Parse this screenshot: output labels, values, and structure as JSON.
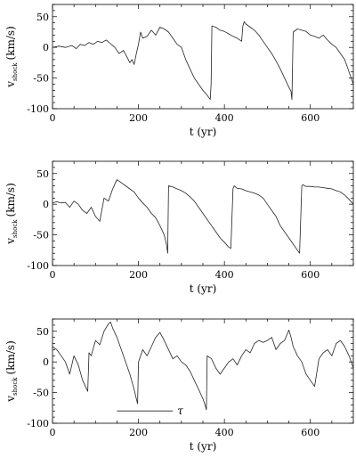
{
  "chart_data": [
    {
      "type": "line",
      "xlabel": "t (yr)",
      "ylabel_main": "v",
      "ylabel_sub": "shock",
      "ylabel_units": "(km/s)",
      "xlim": [
        0,
        700
      ],
      "ylim": [
        -100,
        70
      ],
      "xticks_major": [
        0,
        200,
        400,
        600
      ],
      "yticks_major": [
        -100,
        -50,
        0,
        50
      ],
      "x": [
        0,
        15,
        30,
        45,
        55,
        65,
        75,
        85,
        95,
        105,
        115,
        125,
        135,
        145,
        155,
        165,
        175,
        180,
        185,
        190,
        195,
        200,
        205,
        210,
        220,
        230,
        240,
        250,
        260,
        270,
        280,
        290,
        300,
        310,
        320,
        330,
        340,
        350,
        360,
        367,
        369,
        371,
        380,
        390,
        400,
        410,
        420,
        430,
        440,
        443,
        446,
        450,
        460,
        470,
        480,
        490,
        500,
        510,
        520,
        530,
        540,
        550,
        555,
        557,
        560,
        570,
        580,
        590,
        600,
        610,
        620,
        630,
        640,
        650,
        660,
        670,
        680,
        690,
        700
      ],
      "y": [
        0,
        2,
        0,
        3,
        -2,
        5,
        3,
        8,
        5,
        10,
        8,
        12,
        6,
        0,
        -10,
        -5,
        -18,
        -25,
        -20,
        -28,
        -10,
        5,
        25,
        15,
        18,
        28,
        20,
        33,
        30,
        25,
        15,
        5,
        0,
        -20,
        -35,
        -50,
        -60,
        -70,
        -78,
        -85,
        -60,
        35,
        33,
        28,
        26,
        22,
        18,
        15,
        10,
        35,
        42,
        38,
        33,
        28,
        20,
        10,
        0,
        -10,
        -22,
        -35,
        -50,
        -65,
        -72,
        -85,
        25,
        30,
        28,
        26,
        20,
        18,
        15,
        20,
        12,
        5,
        0,
        -10,
        -20,
        -40,
        -60
      ]
    },
    {
      "type": "line",
      "xlabel": "t (yr)",
      "ylabel_main": "v",
      "ylabel_sub": "shock",
      "ylabel_units": "(km/s)",
      "xlim": [
        0,
        700
      ],
      "ylim": [
        -100,
        70
      ],
      "xticks_major": [
        0,
        200,
        400,
        600
      ],
      "yticks_major": [
        -100,
        -50,
        0,
        50
      ],
      "x": [
        0,
        10,
        20,
        30,
        40,
        50,
        60,
        70,
        80,
        90,
        100,
        110,
        120,
        130,
        140,
        150,
        160,
        170,
        180,
        190,
        200,
        210,
        220,
        230,
        240,
        250,
        260,
        265,
        268,
        270,
        280,
        290,
        300,
        310,
        320,
        330,
        340,
        350,
        360,
        370,
        380,
        390,
        400,
        410,
        415,
        420,
        423,
        426,
        430,
        440,
        450,
        460,
        470,
        480,
        490,
        500,
        510,
        520,
        530,
        540,
        550,
        560,
        570,
        575,
        580,
        583,
        586,
        590,
        600,
        610,
        620,
        630,
        640,
        650,
        660,
        670,
        680,
        690,
        700
      ],
      "y": [
        2,
        4,
        2,
        3,
        -5,
        5,
        0,
        -10,
        -15,
        -5,
        -20,
        -28,
        10,
        5,
        25,
        40,
        35,
        30,
        25,
        20,
        10,
        2,
        -5,
        -15,
        -22,
        -35,
        -50,
        -65,
        -80,
        30,
        28,
        25,
        22,
        18,
        12,
        5,
        -5,
        -15,
        -25,
        -35,
        -45,
        -55,
        -62,
        -70,
        -72,
        25,
        30,
        28,
        26,
        25,
        22,
        20,
        18,
        15,
        10,
        0,
        -10,
        -20,
        -35,
        -45,
        -55,
        -65,
        -75,
        -80,
        30,
        32,
        30,
        29,
        29,
        28,
        28,
        27,
        26,
        25,
        22,
        20,
        15,
        8,
        0
      ]
    },
    {
      "type": "line",
      "xlabel": "t (yr)",
      "ylabel_main": "v",
      "ylabel_sub": "shock",
      "ylabel_units": "(km/s)",
      "xlim": [
        0,
        700
      ],
      "ylim": [
        -100,
        70
      ],
      "xticks_major": [
        0,
        200,
        400,
        600
      ],
      "yticks_major": [
        -100,
        -50,
        0,
        50
      ],
      "annotation": {
        "label": "τ",
        "x0": 150,
        "x1": 280,
        "y": -80
      },
      "x": [
        0,
        10,
        20,
        30,
        40,
        50,
        60,
        70,
        80,
        82,
        85,
        90,
        100,
        110,
        120,
        130,
        135,
        140,
        150,
        160,
        170,
        180,
        190,
        195,
        198,
        200,
        210,
        220,
        230,
        240,
        250,
        260,
        270,
        280,
        290,
        300,
        310,
        320,
        330,
        340,
        350,
        355,
        358,
        360,
        370,
        380,
        390,
        400,
        410,
        420,
        430,
        440,
        450,
        460,
        470,
        480,
        490,
        500,
        510,
        520,
        530,
        540,
        550,
        555,
        560,
        570,
        580,
        590,
        600,
        610,
        620,
        630,
        640,
        650,
        660,
        670,
        680,
        690,
        700
      ],
      "y": [
        25,
        20,
        10,
        0,
        -20,
        10,
        -5,
        -30,
        -45,
        -48,
        15,
        10,
        35,
        28,
        50,
        62,
        65,
        55,
        40,
        20,
        0,
        -20,
        -45,
        -60,
        -68,
        0,
        20,
        10,
        25,
        40,
        48,
        35,
        20,
        5,
        10,
        0,
        -5,
        -15,
        -30,
        -45,
        -60,
        -70,
        -78,
        10,
        5,
        -10,
        -20,
        -10,
        0,
        5,
        -5,
        10,
        20,
        15,
        30,
        35,
        32,
        35,
        40,
        20,
        30,
        35,
        52,
        40,
        25,
        10,
        0,
        -20,
        -30,
        -40,
        5,
        15,
        20,
        10,
        30,
        35,
        25,
        10,
        -10
      ]
    }
  ]
}
